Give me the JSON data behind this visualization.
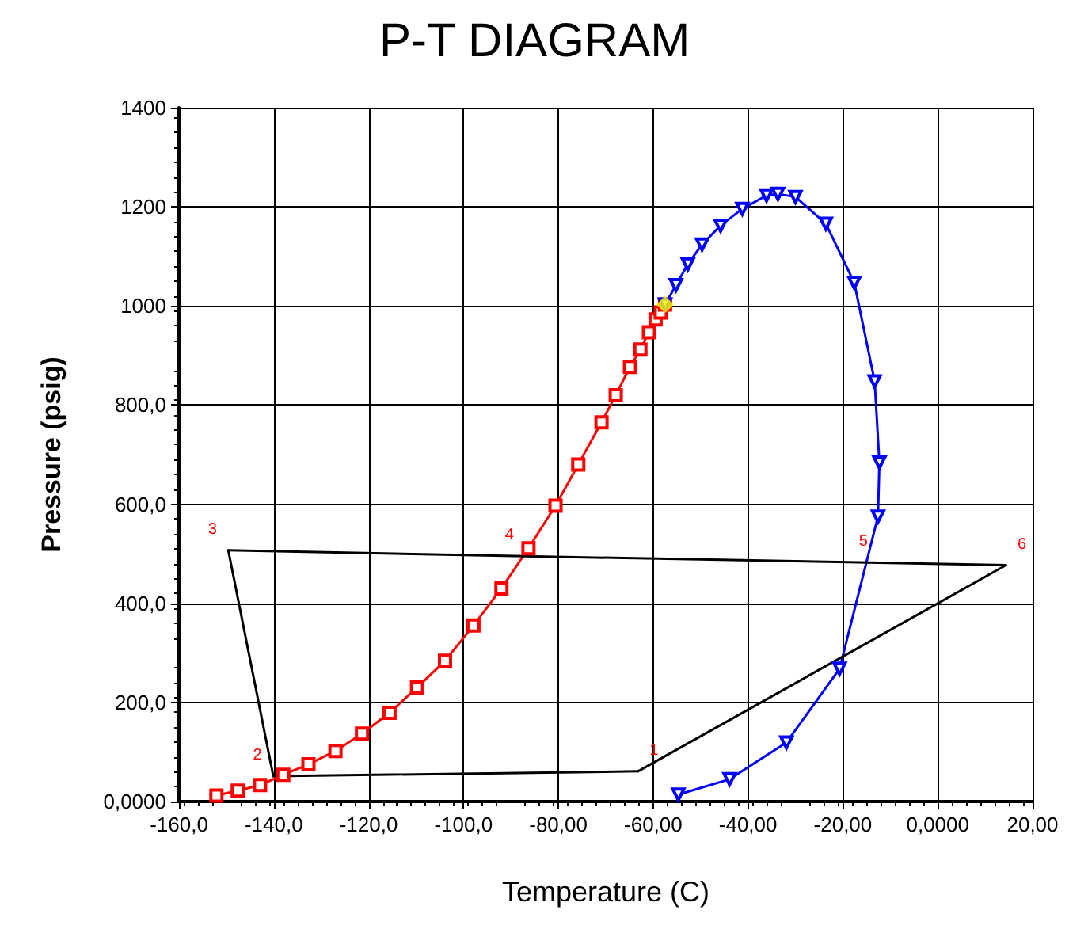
{
  "chart_data": {
    "type": "line",
    "title": "P-T DIAGRAM",
    "xlabel": "Temperature (C)",
    "ylabel": "Pressure (psig)",
    "xlim": [
      -160,
      20
    ],
    "xticks": [
      {
        "value": -160,
        "label": "-160,0"
      },
      {
        "value": -140,
        "label": "-140,0"
      },
      {
        "value": -120,
        "label": "-120,0"
      },
      {
        "value": -100,
        "label": "-100,0"
      },
      {
        "value": -80,
        "label": "-80,00"
      },
      {
        "value": -60,
        "label": "-60,00"
      },
      {
        "value": -40,
        "label": "-40,00"
      },
      {
        "value": -20,
        "label": "-20,00"
      },
      {
        "value": 0,
        "label": "0,0000"
      },
      {
        "value": 20,
        "label": "20,00"
      }
    ],
    "ylim": [
      0,
      1400
    ],
    "yticks": [
      {
        "value": 0,
        "label": "0,0000"
      },
      {
        "value": 200,
        "label": "200,0"
      },
      {
        "value": 400,
        "label": "400,0"
      },
      {
        "value": 600,
        "label": "600,0"
      },
      {
        "value": 800,
        "label": "800,0"
      },
      1000,
      1200,
      1400
    ],
    "grid": true,
    "line_style": "solid",
    "series": [
      {
        "color": "#ff0000",
        "marker": "square",
        "x": [
          -152.1,
          -147.6,
          -142.9,
          -138,
          -132.7,
          -127,
          -121.4,
          -115.6,
          -109.8,
          -103.9,
          -97.9,
          -92,
          -86.3,
          -80.6,
          -75.8,
          -70.9,
          -67.9,
          -64.9,
          -62.7,
          -60.9,
          -59.5,
          -58.4,
          -57.5
        ],
        "values": [
          12,
          22,
          33,
          54,
          75,
          102,
          137,
          179,
          230,
          284,
          355,
          430,
          511,
          597,
          680,
          765,
          820,
          877,
          912,
          947,
          973,
          987,
          1003
        ]
      },
      {
        "color": "#0000ff",
        "marker": "triangle",
        "x": [
          -57.5,
          -55.2,
          -52.7,
          -49.7,
          -45.8,
          -41.2,
          -36.1,
          -33.7,
          -30,
          -23.6,
          -17.6,
          -13.3,
          -12.3,
          -12.6,
          -20.7,
          -31.9,
          -43.9,
          -54.7
        ],
        "values": [
          1003,
          1042,
          1084,
          1124,
          1162,
          1196,
          1223,
          1226,
          1220,
          1166,
          1047,
          848,
          684,
          575,
          268,
          119,
          45,
          14
        ]
      },
      {
        "color": "#000000",
        "marker": "none",
        "x": [
          -63.2,
          -140.1,
          -149.6
        ],
        "values": [
          61,
          51,
          507
        ]
      },
      {
        "color": "#000000",
        "marker": "none",
        "x": [
          -149.6,
          -87,
          -19,
          14.4,
          -63.2
        ],
        "values": [
          507,
          495,
          483,
          477,
          61
        ]
      },
      {
        "type": "scatter",
        "color": "#ffff00",
        "marker": "diamond",
        "x": [
          -57.5
        ],
        "values": [
          1003
        ]
      }
    ],
    "annotations": [
      {
        "text": "1",
        "x": -63.2,
        "y": 61
      },
      {
        "text": "2",
        "x": -140.1,
        "y": 51
      },
      {
        "text": "3",
        "x": -149.6,
        "y": 507
      },
      {
        "text": "4",
        "x": -87,
        "y": 495
      },
      {
        "text": "5",
        "x": -19,
        "y": 483
      },
      {
        "text": "6",
        "x": 14.4,
        "y": 477
      }
    ]
  }
}
